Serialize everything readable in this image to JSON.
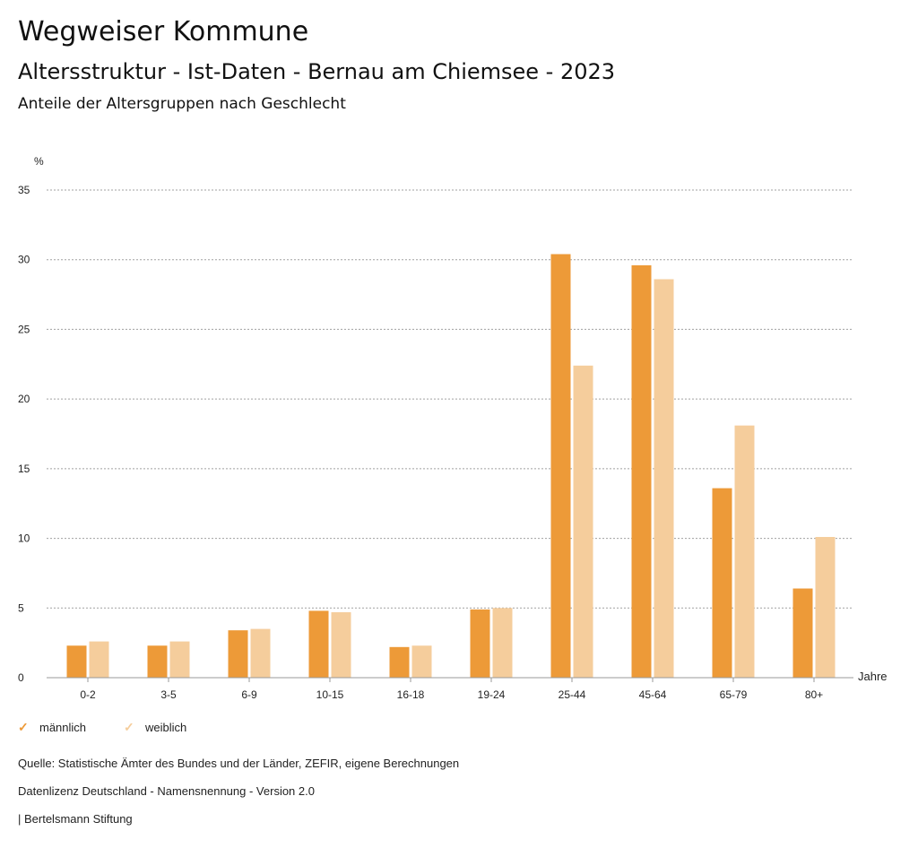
{
  "header": {
    "title": "Wegweiser Kommune",
    "subtitle": "Altersstruktur - Ist-Daten - Bernau am Chiemsee - 2023",
    "description": "Anteile der Altersgruppen nach Geschlecht"
  },
  "colors": {
    "maennlich": "#ED9A38",
    "weiblich": "#F5CD9C",
    "grid": "#a0a0a0",
    "axis": "#999999",
    "text": "#222222"
  },
  "chart_data": {
    "type": "bar",
    "title": "Anteile der Altersgruppen nach Geschlecht",
    "xlabel": "Jahre",
    "ylabel": "%",
    "ylim": [
      0,
      35
    ],
    "yticks": [
      0,
      5,
      10,
      15,
      20,
      25,
      30,
      35
    ],
    "grid": true,
    "legend_position": "bottom-left",
    "categories": [
      "0-2",
      "3-5",
      "6-9",
      "10-15",
      "16-18",
      "19-24",
      "25-44",
      "45-64",
      "65-79",
      "80+"
    ],
    "series": [
      {
        "name": "männlich",
        "color": "#ED9A38",
        "values": [
          2.3,
          2.3,
          3.4,
          4.8,
          2.2,
          4.9,
          30.4,
          29.6,
          13.6,
          6.4
        ]
      },
      {
        "name": "weiblich",
        "color": "#F5CD9C",
        "values": [
          2.6,
          2.6,
          3.5,
          4.7,
          2.3,
          5.0,
          22.4,
          28.6,
          18.1,
          10.1
        ]
      }
    ]
  },
  "footer": {
    "source": "Quelle: Statistische Ämter des Bundes und der Länder, ZEFIR, eigene Berechnungen",
    "license": "Datenlizenz Deutschland - Namensnennung - Version 2.0",
    "publisher": "| Bertelsmann Stiftung"
  }
}
